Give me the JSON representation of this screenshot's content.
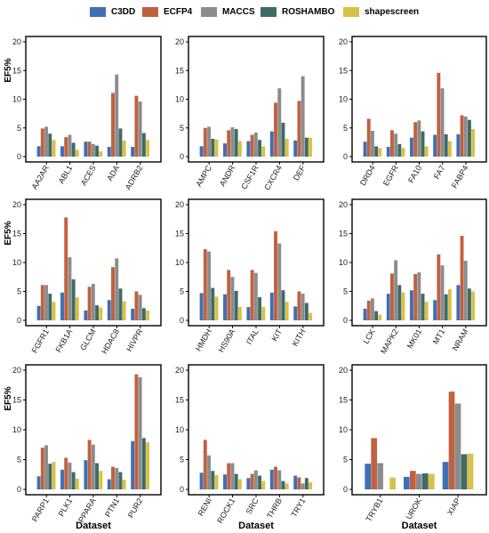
{
  "legend": {
    "series": [
      {
        "name": "C3DD",
        "color": "#3F6FB5"
      },
      {
        "name": "ECFP4",
        "color": "#C0613F"
      },
      {
        "name": "MACCS",
        "color": "#8C8C8C"
      },
      {
        "name": "ROSHAMBO",
        "color": "#3F6B66"
      },
      {
        "name": "shapescreen",
        "color": "#D8C14A"
      }
    ]
  },
  "chart_data": [
    {
      "type": "bar",
      "panel": "row1-col1",
      "ylabel": "EF5%",
      "xlabel": "",
      "ylim": [
        0,
        20
      ],
      "yticks": [
        0,
        5,
        10,
        15,
        20
      ],
      "categories": [
        "AA2AR",
        "ABL1",
        "ACES",
        "ADA",
        "ADRB2"
      ],
      "series": [
        {
          "name": "C3DD",
          "values": [
            1.8,
            1.8,
            2.6,
            1.7,
            1.7
          ]
        },
        {
          "name": "ECFP4",
          "values": [
            4.9,
            3.4,
            2.6,
            11.1,
            10.6
          ]
        },
        {
          "name": "MACCS",
          "values": [
            5.2,
            3.8,
            2.2,
            14.3,
            9.6
          ]
        },
        {
          "name": "ROSHAMBO",
          "values": [
            4.0,
            2.4,
            1.9,
            4.9,
            4.1
          ]
        },
        {
          "name": "shapescreen",
          "values": [
            2.9,
            1.2,
            0.9,
            2.8,
            2.9
          ]
        }
      ]
    },
    {
      "type": "bar",
      "panel": "row1-col2",
      "ylabel": "",
      "xlabel": "",
      "ylim": [
        0,
        20
      ],
      "yticks": [
        0,
        5,
        10,
        15,
        20
      ],
      "categories": [
        "AMPC",
        "ANDR",
        "CSF1R",
        "CXCR4",
        "DEF"
      ],
      "series": [
        {
          "name": "C3DD",
          "values": [
            1.8,
            2.3,
            2.7,
            4.4,
            2.8
          ]
        },
        {
          "name": "ECFP4",
          "values": [
            5.0,
            4.6,
            3.8,
            9.4,
            9.7
          ]
        },
        {
          "name": "MACCS",
          "values": [
            5.2,
            5.1,
            4.2,
            11.9,
            14.0
          ]
        },
        {
          "name": "ROSHAMBO",
          "values": [
            3.1,
            4.8,
            2.9,
            5.9,
            3.3
          ]
        },
        {
          "name": "shapescreen",
          "values": [
            3.0,
            2.7,
            1.8,
            3.1,
            3.3
          ]
        }
      ]
    },
    {
      "type": "bar",
      "panel": "row1-col3",
      "ylabel": "",
      "xlabel": "",
      "ylim": [
        0,
        20
      ],
      "yticks": [
        0,
        5,
        10,
        15,
        20
      ],
      "categories": [
        "DRD4",
        "EGFR",
        "FA10",
        "FA7",
        "FABP4"
      ],
      "series": [
        {
          "name": "C3DD",
          "values": [
            2.6,
            1.7,
            3.3,
            3.8,
            3.9
          ]
        },
        {
          "name": "ECFP4",
          "values": [
            6.6,
            4.6,
            6.0,
            14.6,
            7.2
          ]
        },
        {
          "name": "MACCS",
          "values": [
            4.5,
            4.0,
            6.3,
            11.9,
            7.0
          ]
        },
        {
          "name": "ROSHAMBO",
          "values": [
            1.8,
            2.2,
            4.4,
            3.9,
            6.4
          ]
        },
        {
          "name": "shapescreen",
          "values": [
            1.5,
            1.5,
            1.8,
            2.7,
            4.8
          ]
        }
      ]
    },
    {
      "type": "bar",
      "panel": "row2-col1",
      "ylabel": "EF5%",
      "xlabel": "",
      "ylim": [
        0,
        20
      ],
      "yticks": [
        0,
        5,
        10,
        15,
        20
      ],
      "categories": [
        "FGFR1",
        "FKB1A",
        "GLCM",
        "HDAC8",
        "HIVPR"
      ],
      "series": [
        {
          "name": "C3DD",
          "values": [
            2.5,
            4.8,
            1.7,
            3.5,
            2.0
          ]
        },
        {
          "name": "ECFP4",
          "values": [
            6.1,
            17.8,
            5.8,
            9.2,
            5.0
          ]
        },
        {
          "name": "MACCS",
          "values": [
            6.1,
            10.9,
            6.3,
            10.7,
            4.4
          ]
        },
        {
          "name": "ROSHAMBO",
          "values": [
            4.6,
            7.1,
            2.6,
            5.5,
            2.1
          ]
        },
        {
          "name": "shapescreen",
          "values": [
            3.2,
            4.0,
            2.2,
            3.3,
            1.7
          ]
        }
      ]
    },
    {
      "type": "bar",
      "panel": "row2-col2",
      "ylabel": "",
      "xlabel": "",
      "ylim": [
        0,
        20
      ],
      "yticks": [
        0,
        5,
        10,
        15,
        20
      ],
      "categories": [
        "HMDH",
        "HS90A",
        "ITAL",
        "KIT",
        "KITH"
      ],
      "series": [
        {
          "name": "C3DD",
          "values": [
            4.7,
            4.5,
            2.3,
            4.8,
            2.4
          ]
        },
        {
          "name": "ECFP4",
          "values": [
            12.3,
            8.7,
            8.7,
            15.4,
            5.0
          ]
        },
        {
          "name": "MACCS",
          "values": [
            11.9,
            7.5,
            8.2,
            13.3,
            4.6
          ]
        },
        {
          "name": "ROSHAMBO",
          "values": [
            5.6,
            5.1,
            4.0,
            5.2,
            3.0
          ]
        },
        {
          "name": "shapescreen",
          "values": [
            4.1,
            2.3,
            2.3,
            3.2,
            1.3
          ]
        }
      ]
    },
    {
      "type": "bar",
      "panel": "row2-col3",
      "ylabel": "",
      "xlabel": "",
      "ylim": [
        0,
        20
      ],
      "yticks": [
        0,
        5,
        10,
        15,
        20
      ],
      "categories": [
        "LCK",
        "MAPK2",
        "MK01",
        "MT1",
        "NRAM"
      ],
      "series": [
        {
          "name": "C3DD",
          "values": [
            2.0,
            4.6,
            5.2,
            3.5,
            6.1
          ]
        },
        {
          "name": "ECFP4",
          "values": [
            3.4,
            8.1,
            8.0,
            11.4,
            14.6
          ]
        },
        {
          "name": "MACCS",
          "values": [
            3.8,
            10.4,
            8.3,
            9.5,
            10.3
          ]
        },
        {
          "name": "ROSHAMBO",
          "values": [
            1.6,
            6.1,
            4.6,
            4.5,
            5.5
          ]
        },
        {
          "name": "shapescreen",
          "values": [
            1.0,
            4.8,
            3.2,
            5.4,
            5.0
          ]
        }
      ]
    },
    {
      "type": "bar",
      "panel": "row3-col1",
      "ylabel": "EF5%",
      "xlabel": "Dataset",
      "ylim": [
        0,
        20
      ],
      "yticks": [
        0,
        5,
        10,
        15,
        20
      ],
      "categories": [
        "PARP1",
        "PLK1",
        "PPARA",
        "PTN1",
        "PUR2"
      ],
      "series": [
        {
          "name": "C3DD",
          "values": [
            2.2,
            3.3,
            4.9,
            1.7,
            8.1
          ]
        },
        {
          "name": "ECFP4",
          "values": [
            7.0,
            5.3,
            8.3,
            3.8,
            19.3
          ]
        },
        {
          "name": "MACCS",
          "values": [
            7.4,
            4.5,
            7.5,
            3.6,
            18.8
          ]
        },
        {
          "name": "ROSHAMBO",
          "values": [
            4.3,
            2.9,
            4.4,
            2.9,
            8.6
          ]
        },
        {
          "name": "shapescreen",
          "values": [
            4.6,
            1.8,
            3.1,
            1.6,
            7.9
          ]
        }
      ]
    },
    {
      "type": "bar",
      "panel": "row3-col2",
      "ylabel": "",
      "xlabel": "Dataset",
      "ylim": [
        0,
        20
      ],
      "yticks": [
        0,
        5,
        10,
        15,
        20
      ],
      "categories": [
        "RENI",
        "ROCK1",
        "SRC",
        "THRB",
        "TRY1"
      ],
      "series": [
        {
          "name": "C3DD",
          "values": [
            2.8,
            2.5,
            1.9,
            3.3,
            2.3
          ]
        },
        {
          "name": "ECFP4",
          "values": [
            8.3,
            4.4,
            2.6,
            3.8,
            2.0
          ]
        },
        {
          "name": "MACCS",
          "values": [
            5.7,
            4.4,
            3.2,
            3.2,
            1.0
          ]
        },
        {
          "name": "ROSHAMBO",
          "values": [
            3.1,
            2.6,
            2.3,
            1.4,
            1.9
          ]
        },
        {
          "name": "shapescreen",
          "values": [
            2.4,
            1.7,
            1.4,
            1.0,
            1.2
          ]
        }
      ]
    },
    {
      "type": "bar",
      "panel": "row3-col3",
      "ylabel": "",
      "xlabel": "Dataset",
      "ylim": [
        0,
        20
      ],
      "yticks": [
        0,
        5,
        10,
        15,
        20
      ],
      "categories": [
        "TRYB1",
        "UROK",
        "XIAP"
      ],
      "series": [
        {
          "name": "C3DD",
          "values": [
            4.3,
            2.1,
            4.6
          ]
        },
        {
          "name": "ECFP4",
          "values": [
            8.6,
            3.1,
            16.4
          ]
        },
        {
          "name": "MACCS",
          "values": [
            4.4,
            2.6,
            14.4
          ]
        },
        {
          "name": "ROSHAMBO",
          "values": [
            0.0,
            2.7,
            5.9
          ]
        },
        {
          "name": "shapescreen",
          "values": [
            2.0,
            2.6,
            6.0
          ]
        }
      ]
    }
  ]
}
